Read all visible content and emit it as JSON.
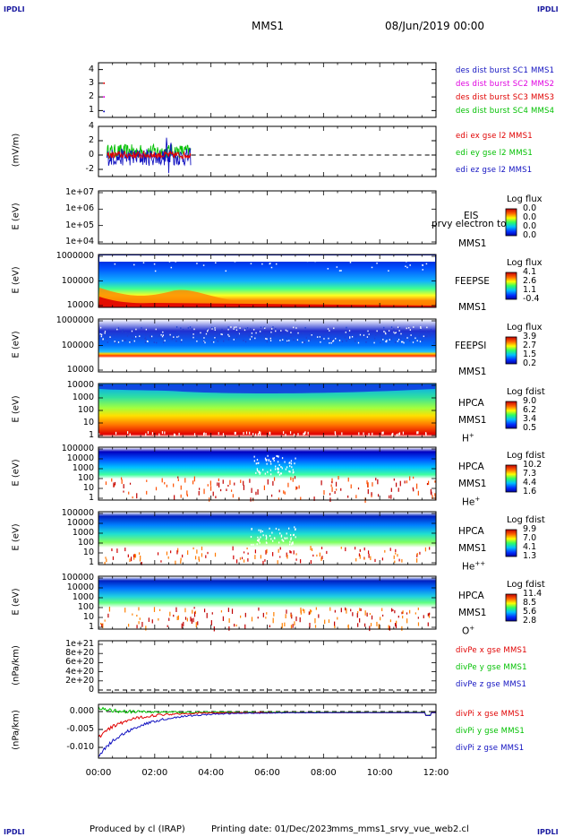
{
  "header": {
    "corner_tl": "IPDLI",
    "corner_tr": "IPDLI",
    "corner_bl": "IPDLI",
    "corner_br": "IPDLI",
    "title": "MMS1",
    "datetime": "08/Jun/2019 00:00"
  },
  "footer": {
    "produced": "Produced by cl (IRAP)",
    "printing": "Printing date: 01/Dec/2023",
    "script": "mms_mms1_srvy_vue_web2.cl"
  },
  "colors": {
    "blue": "#1010c0",
    "red": "#e00000",
    "green": "#00c000",
    "magenta": "#e000e0"
  },
  "chart_data": [
    {
      "type": "scatter",
      "panel": "des-dist",
      "ylabel": "",
      "ylim": [
        0.5,
        4.5
      ],
      "yticks": [
        "4",
        "3",
        "2",
        "1"
      ],
      "legend": [
        "des dist burst SC1 MMS1",
        "des dist burst SC2 MMS2",
        "des dist burst SC3 MMS3",
        "des dist burst SC4 MMS4"
      ],
      "series": [
        {
          "name": "des dist burst SC1 MMS1",
          "values": [
            [
              0.1,
              1
            ]
          ]
        },
        {
          "name": "des dist burst SC2 MMS2",
          "values": [
            [
              0.1,
              2
            ]
          ]
        },
        {
          "name": "des dist burst SC3 MMS3",
          "values": [
            [
              0.1,
              3
            ]
          ]
        }
      ]
    },
    {
      "type": "line",
      "panel": "edi",
      "ylabel": "(mV/m)",
      "ylim": [
        -3,
        4
      ],
      "yticks": [
        "4",
        "2",
        "0",
        "-2"
      ],
      "legend": [
        "edi ex gse l2 MMS1",
        "edi ey gse l2 MMS1",
        "edi ez gse l2 MMS1"
      ],
      "x_range_hours": [
        0.3,
        3.3
      ]
    },
    {
      "type": "heatmap",
      "panel": "eis",
      "ylabel": "E (eV)",
      "yticks": [
        "1e+07",
        "1e+06",
        "1e+05",
        "1e+04"
      ],
      "label_top": "EIS",
      "label_mid": "prvy electron to",
      "label_bot": "MMS1",
      "cb_title": "Log flux",
      "cb_values": [
        "0.0",
        "0.0",
        "0.0",
        "0.0"
      ]
    },
    {
      "type": "heatmap",
      "panel": "feeps-e",
      "ylabel": "E (eV)",
      "yticks": [
        "1000000",
        "100000",
        "10000"
      ],
      "label_top": "FEEPSE",
      "label_bot": "MMS1",
      "cb_title": "Log flux",
      "cb_values": [
        "4.1",
        "2.6",
        "1.1",
        "-0.4"
      ]
    },
    {
      "type": "heatmap",
      "panel": "feeps-i",
      "ylabel": "E (eV)",
      "yticks": [
        "1000000",
        "100000",
        "10000"
      ],
      "label_top": "FEEPSI",
      "label_bot": "MMS1",
      "cb_title": "Log flux",
      "cb_values": [
        "3.9",
        "2.7",
        "1.5",
        "0.2"
      ]
    },
    {
      "type": "heatmap",
      "panel": "hpca-h",
      "ylabel": "E (eV)",
      "yticks": [
        "10000",
        "1000",
        "100",
        "10",
        "1"
      ],
      "label_top": "HPCA",
      "label_mid": "MMS1",
      "label_bot": "H",
      "label_sup": "+",
      "cb_title": "Log fdist",
      "cb_values": [
        "9.0",
        "6.2",
        "3.4",
        "0.5"
      ]
    },
    {
      "type": "heatmap",
      "panel": "hpca-he",
      "ylabel": "E (eV)",
      "yticks": [
        "100000",
        "10000",
        "1000",
        "100",
        "10",
        "1"
      ],
      "label_top": "HPCA",
      "label_mid": "MMS1",
      "label_bot": "He",
      "label_sup": "+",
      "cb_title": "Log fdist",
      "cb_values": [
        "10.2",
        "7.3",
        "4.4",
        "1.6"
      ]
    },
    {
      "type": "heatmap",
      "panel": "hpca-hepp",
      "ylabel": "E (eV)",
      "yticks": [
        "100000",
        "10000",
        "1000",
        "100",
        "10",
        "1"
      ],
      "label_top": "HPCA",
      "label_mid": "MMS1",
      "label_bot": "He",
      "label_sup": "++",
      "cb_title": "Log fdist",
      "cb_values": [
        "9.9",
        "7.0",
        "4.1",
        "1.3"
      ]
    },
    {
      "type": "heatmap",
      "panel": "hpca-o",
      "ylabel": "E (eV)",
      "yticks": [
        "100000",
        "10000",
        "1000",
        "100",
        "10",
        "1"
      ],
      "label_top": "HPCA",
      "label_mid": "MMS1",
      "label_bot": "O",
      "label_sup": "+",
      "cb_title": "Log fdist",
      "cb_values": [
        "11.4",
        "8.5",
        "5.6",
        "2.8"
      ]
    },
    {
      "type": "line",
      "panel": "divpe",
      "ylabel": "(nPa/km)",
      "ylim": [
        0,
        1e+21
      ],
      "yticks": [
        "1e+21",
        "8e+20",
        "6e+20",
        "4e+20",
        "2e+20",
        "0"
      ],
      "legend": [
        "divPe x gse MMS1",
        "divPe y gse MMS1",
        "divPe z gse MMS1"
      ]
    },
    {
      "type": "line",
      "panel": "divpi",
      "ylabel": "(nPa/km)",
      "ylim": [
        -0.013,
        0.002
      ],
      "yticks": [
        "0.000",
        "-0.005",
        "-0.010"
      ],
      "legend": [
        "divPi x gse MMS1",
        "divPi y gse MMS1",
        "divPi z gse MMS1"
      ]
    }
  ],
  "xaxis": {
    "ticks": [
      "00:00",
      "02:00",
      "04:00",
      "06:00",
      "08:00",
      "10:00",
      "12:00"
    ]
  }
}
